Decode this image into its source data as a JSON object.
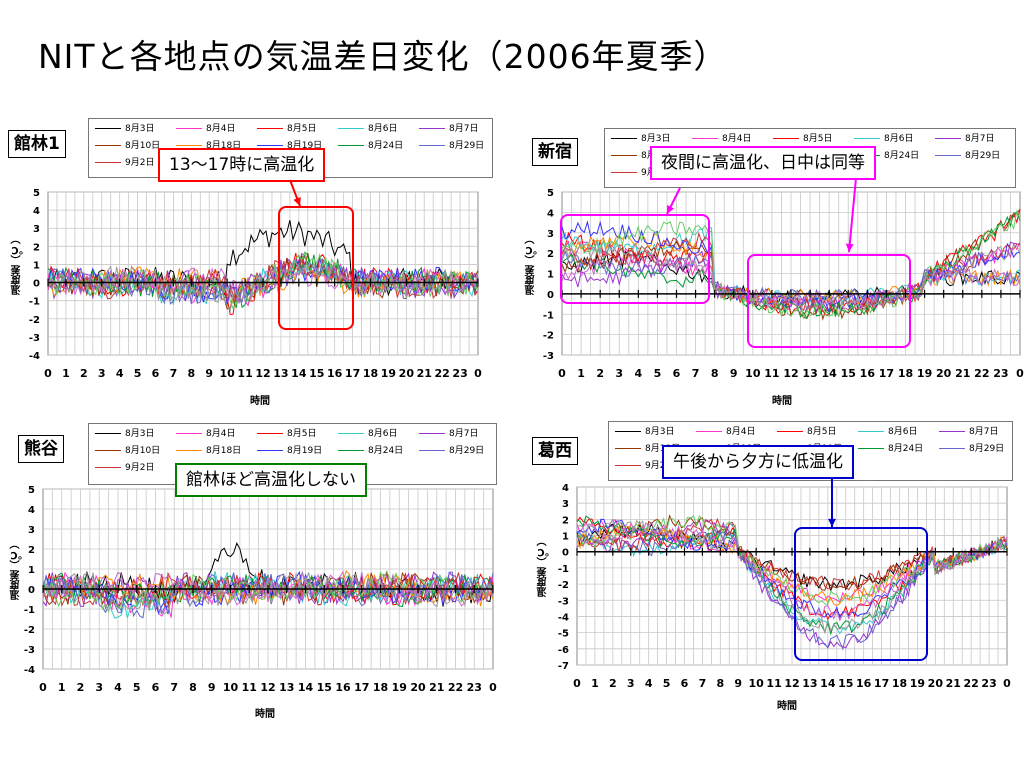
{
  "title": "NITと各地点の気温差日変化（2006年夏季）",
  "series_colors": [
    "#000000",
    "#ff33cc",
    "#ff0000",
    "#33cccc",
    "#9933cc",
    "#993300",
    "#ff8800",
    "#3333ff",
    "#009933",
    "#6666cc",
    "#cc3333",
    "#66cc66",
    "#cc66cc",
    "#999999"
  ],
  "legend_labels": [
    "8月3日",
    "8月4日",
    "8月5日",
    "8月6日",
    "8月7日",
    "8月10日",
    "8月18日",
    "8月19日",
    "8月24日",
    "8月29日",
    "9月2日"
  ],
  "panels": [
    {
      "id": "tatebayashi",
      "station": "館林1",
      "callout": "13〜17時に高温化",
      "callout_color": "#ff0000",
      "chart_data": {
        "type": "line",
        "ylim": [
          -4,
          5
        ],
        "yticks": [
          -4,
          -3,
          -2,
          -1,
          0,
          1,
          2,
          3,
          4,
          5
        ],
        "categories": [
          "0",
          "1",
          "2",
          "3",
          "4",
          "5",
          "6",
          "7",
          "8",
          "9",
          "10",
          "11",
          "12",
          "13",
          "14",
          "15",
          "16",
          "17",
          "18",
          "19",
          "20",
          "21",
          "22",
          "23",
          "0"
        ],
        "xlabel": "時間",
        "ylabel": "温度差（℃）",
        "highlight_hours": [
          [
            13,
            17
          ]
        ]
      }
    },
    {
      "id": "shinjuku",
      "station": "新宿",
      "callout": "夜間に高温化、日中は同等",
      "callout_color": "#ff00ff",
      "chart_data": {
        "type": "line",
        "ylim": [
          -3,
          5
        ],
        "yticks": [
          -3,
          -2,
          -1,
          0,
          1,
          2,
          3,
          4,
          5
        ],
        "categories": [
          "0",
          "1",
          "2",
          "3",
          "4",
          "5",
          "6",
          "7",
          "8",
          "9",
          "10",
          "11",
          "12",
          "13",
          "14",
          "15",
          "16",
          "17",
          "18",
          "19",
          "20",
          "21",
          "22",
          "23",
          "0"
        ],
        "xlabel": "時間",
        "ylabel": "温度差（℃）",
        "highlight_hours": [
          [
            0,
            8
          ],
          [
            10,
            19
          ]
        ]
      }
    },
    {
      "id": "kumagaya",
      "station": "熊谷",
      "callout": "館林ほど高温化しない",
      "callout_color": "#008000",
      "chart_data": {
        "type": "line",
        "ylim": [
          -4,
          5
        ],
        "yticks": [
          -4,
          -3,
          -2,
          -1,
          0,
          1,
          2,
          3,
          4,
          5
        ],
        "categories": [
          "0",
          "1",
          "2",
          "3",
          "4",
          "5",
          "6",
          "7",
          "8",
          "9",
          "10",
          "11",
          "12",
          "13",
          "14",
          "15",
          "16",
          "17",
          "18",
          "19",
          "20",
          "21",
          "22",
          "23",
          "0"
        ],
        "xlabel": "時間",
        "ylabel": "温度差（℃）",
        "highlight_hours": []
      }
    },
    {
      "id": "katsushika",
      "station": "葛西",
      "callout": "午後から夕方に低温化",
      "callout_color": "#0000cc",
      "chart_data": {
        "type": "line",
        "ylim": [
          -7,
          4
        ],
        "yticks": [
          -7,
          -6,
          -5,
          -4,
          -3,
          -2,
          -1,
          0,
          1,
          2,
          3,
          4
        ],
        "categories": [
          "0",
          "1",
          "2",
          "3",
          "4",
          "5",
          "6",
          "7",
          "8",
          "9",
          "10",
          "11",
          "12",
          "13",
          "14",
          "15",
          "16",
          "17",
          "18",
          "19",
          "20",
          "21",
          "22",
          "23",
          "0"
        ],
        "xlabel": "時間",
        "ylabel": "温度差（℃）",
        "highlight_hours": [
          [
            12,
            19
          ]
        ]
      }
    }
  ],
  "legend_layout_note": "8月3日,8月4日,8月5日,8月6日,8月7日 / 8月10日,8月18日,8月19日,8月24日,8月29日 / 9月2日"
}
